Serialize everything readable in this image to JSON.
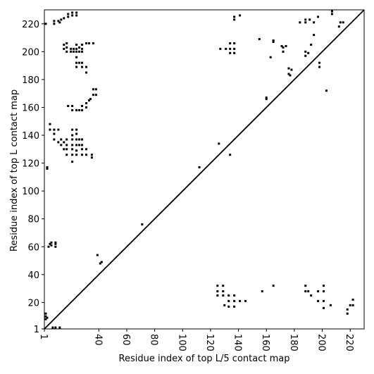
{
  "chart_data": {
    "type": "scatter",
    "xlabel": "Residue index of top L/5 contact map",
    "ylabel": "Residue index of top L contact map",
    "xlim": [
      1,
      230
    ],
    "ylim": [
      1,
      230
    ],
    "xticks": [
      1,
      40,
      60,
      80,
      100,
      120,
      140,
      160,
      180,
      200,
      220
    ],
    "yticks": [
      1,
      20,
      40,
      60,
      80,
      100,
      120,
      140,
      160,
      180,
      200,
      220
    ],
    "color": "#000000",
    "diagonal": {
      "x": [
        1,
        230
      ],
      "y": [
        1,
        230
      ]
    },
    "x": [
      2,
      8,
      8,
      11,
      12,
      13,
      15,
      18,
      18,
      21,
      21,
      24,
      24,
      15,
      15,
      17,
      17,
      17,
      20,
      20,
      22,
      22,
      24,
      24,
      24,
      26,
      26,
      28,
      28,
      28,
      31,
      33,
      36,
      24,
      24,
      24,
      26,
      28,
      28,
      31,
      31,
      18,
      21,
      21,
      24,
      26,
      28,
      28,
      31,
      31,
      33,
      34,
      36,
      36,
      38,
      38,
      5,
      5,
      8,
      8,
      8,
      11,
      11,
      13,
      13,
      15,
      15,
      17,
      17,
      17,
      17,
      21,
      21,
      21,
      21,
      21,
      21,
      21,
      24,
      24,
      24,
      24,
      24,
      24,
      26,
      26,
      28,
      28,
      28,
      28,
      31,
      31,
      35,
      35,
      3,
      3,
      4,
      5,
      6,
      6,
      9,
      9,
      9,
      39,
      42,
      41,
      71,
      112,
      126,
      134,
      127,
      131,
      134,
      134,
      134,
      137,
      137,
      137,
      137,
      137,
      141,
      155,
      163,
      165,
      165,
      160,
      160,
      171,
      172,
      172,
      174,
      176,
      176,
      177,
      178,
      184,
      188,
      188,
      191,
      188,
      188,
      190,
      192,
      194,
      194,
      197,
      198,
      198,
      203,
      207,
      207,
      212,
      213,
      215,
      125,
      125,
      125,
      129,
      129,
      129,
      130,
      133,
      133,
      133,
      137,
      137,
      137,
      141,
      145,
      157,
      165,
      188,
      188,
      190,
      192,
      197,
      197,
      201,
      201,
      201,
      201,
      206,
      218,
      218,
      220,
      222,
      222,
      2,
      2,
      2,
      3,
      7,
      9,
      12
    ],
    "y": [
      220,
      220,
      222,
      222,
      221,
      223,
      224,
      225,
      227,
      226,
      228,
      226,
      228,
      205,
      202,
      206,
      203,
      200,
      202,
      200,
      202,
      200,
      205,
      202,
      200,
      203,
      200,
      205,
      202,
      200,
      206,
      206,
      206,
      196,
      192,
      189,
      192,
      192,
      189,
      189,
      185,
      161,
      161,
      158,
      158,
      158,
      161,
      158,
      160,
      163,
      165,
      166,
      169,
      173,
      173,
      169,
      148,
      144,
      144,
      141,
      137,
      144,
      135,
      137,
      133,
      135,
      130,
      137,
      133,
      130,
      126,
      144,
      140,
      137,
      133,
      130,
      126,
      121,
      144,
      141,
      137,
      133,
      129,
      126,
      137,
      133,
      137,
      133,
      130,
      126,
      130,
      126,
      126,
      124,
      117,
      116,
      60,
      62,
      63,
      61,
      60,
      62,
      63,
      54,
      49,
      48,
      76,
      117,
      134,
      126,
      202,
      202,
      206,
      202,
      199,
      206,
      202,
      199,
      223,
      225,
      226,
      209,
      196,
      207,
      208,
      166,
      167,
      204,
      203,
      200,
      204,
      188,
      184,
      183,
      187,
      221,
      221,
      223,
      223,
      200,
      197,
      199,
      205,
      212,
      221,
      225,
      192,
      189,
      172,
      227,
      229,
      218,
      221,
      221,
      32,
      28,
      25,
      32,
      28,
      25,
      18,
      25,
      21,
      17,
      25,
      21,
      17,
      21,
      21,
      28,
      32,
      32,
      28,
      28,
      25,
      28,
      21,
      32,
      28,
      21,
      16,
      18,
      12,
      15,
      18,
      18,
      22,
      12,
      10,
      8,
      9,
      2,
      2,
      2
    ]
  }
}
